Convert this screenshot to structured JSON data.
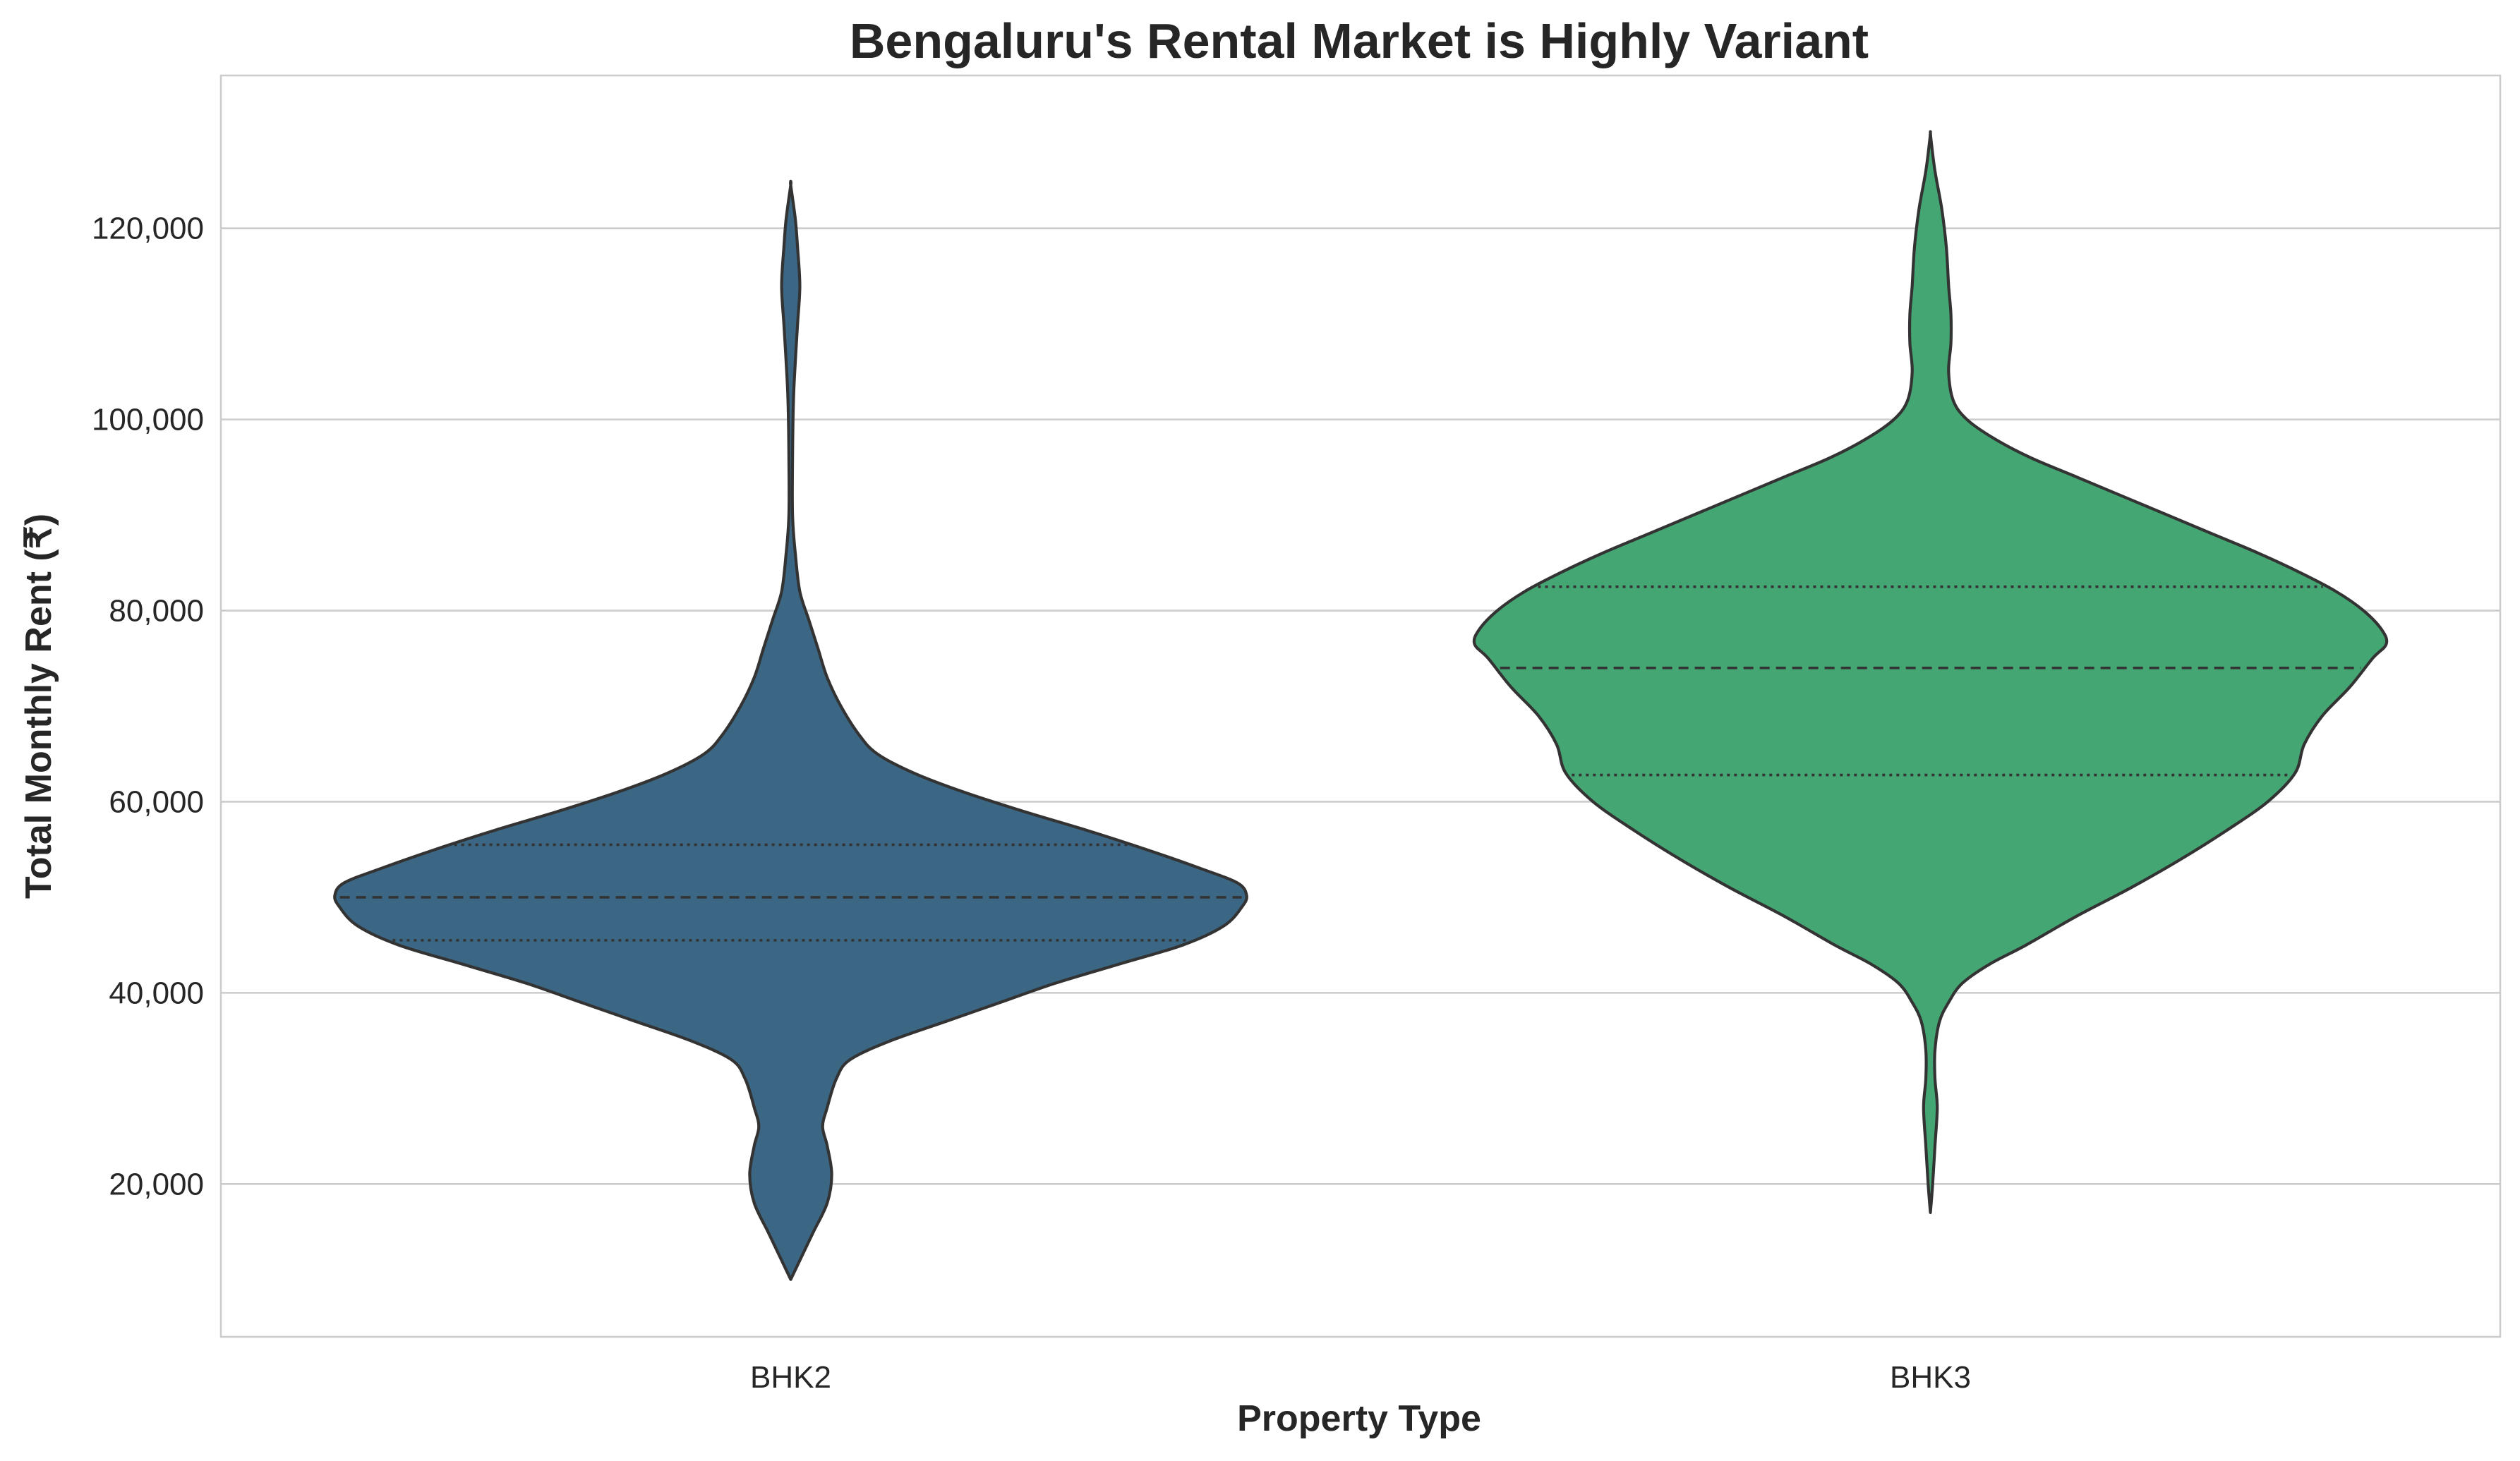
{
  "chart_data": {
    "type": "violin",
    "title": "Bengaluru's Rental Market is Highly Variant",
    "xlabel": "Property Type",
    "ylabel": "Total Monthly Rent (₹)",
    "categories": [
      "BHK2",
      "BHK3"
    ],
    "ylim": [
      4000,
      136000
    ],
    "yticks": [
      20000,
      40000,
      60000,
      80000,
      100000,
      120000
    ],
    "ytick_labels": [
      "20,000",
      "40,000",
      "60,000",
      "80,000",
      "100,000",
      "120,000"
    ],
    "grid": "horizontal",
    "colors": {
      "BHK2": "#3b6684",
      "BHK3": "#44a673"
    },
    "series": [
      {
        "category": "BHK2",
        "min": 10000,
        "q1": 45500,
        "median": 50000,
        "q3": 55500,
        "max": 124500,
        "density": [
          [
            10000,
            0.0
          ],
          [
            12000,
            0.02
          ],
          [
            15000,
            0.05
          ],
          [
            18000,
            0.08
          ],
          [
            21000,
            0.09
          ],
          [
            24000,
            0.08
          ],
          [
            26000,
            0.07
          ],
          [
            28000,
            0.08
          ],
          [
            31000,
            0.1
          ],
          [
            33000,
            0.13
          ],
          [
            35000,
            0.22
          ],
          [
            37000,
            0.34
          ],
          [
            39000,
            0.46
          ],
          [
            41000,
            0.58
          ],
          [
            43000,
            0.72
          ],
          [
            45000,
            0.86
          ],
          [
            47000,
            0.95
          ],
          [
            49000,
            0.99
          ],
          [
            50200,
            1.0
          ],
          [
            51500,
            0.98
          ],
          [
            53000,
            0.9
          ],
          [
            55000,
            0.78
          ],
          [
            57000,
            0.65
          ],
          [
            59000,
            0.51
          ],
          [
            61000,
            0.38
          ],
          [
            63000,
            0.27
          ],
          [
            65000,
            0.19
          ],
          [
            67000,
            0.15
          ],
          [
            70000,
            0.11
          ],
          [
            73000,
            0.08
          ],
          [
            76000,
            0.06
          ],
          [
            79000,
            0.04
          ],
          [
            82000,
            0.02
          ],
          [
            86000,
            0.01
          ],
          [
            90000,
            0.004
          ],
          [
            96000,
            0.004
          ],
          [
            102000,
            0.006
          ],
          [
            106000,
            0.01
          ],
          [
            110000,
            0.015
          ],
          [
            114000,
            0.02
          ],
          [
            118000,
            0.015
          ],
          [
            121000,
            0.01
          ],
          [
            124500,
            0.0
          ]
        ]
      },
      {
        "category": "BHK3",
        "min": 17000,
        "q1": 62800,
        "median": 74000,
        "q3": 82500,
        "max": 130000,
        "density": [
          [
            17000,
            0.0
          ],
          [
            20000,
            0.005
          ],
          [
            24000,
            0.01
          ],
          [
            28000,
            0.015
          ],
          [
            31000,
            0.01
          ],
          [
            34000,
            0.01
          ],
          [
            37000,
            0.02
          ],
          [
            39000,
            0.04
          ],
          [
            41000,
            0.07
          ],
          [
            43000,
            0.13
          ],
          [
            45000,
            0.21
          ],
          [
            48000,
            0.32
          ],
          [
            51000,
            0.44
          ],
          [
            54000,
            0.55
          ],
          [
            57000,
            0.65
          ],
          [
            60000,
            0.74
          ],
          [
            63000,
            0.8
          ],
          [
            66000,
            0.82
          ],
          [
            69000,
            0.86
          ],
          [
            72000,
            0.92
          ],
          [
            75000,
            0.97
          ],
          [
            76500,
            1.0
          ],
          [
            78000,
            0.99
          ],
          [
            80000,
            0.95
          ],
          [
            82000,
            0.89
          ],
          [
            84000,
            0.81
          ],
          [
            86000,
            0.72
          ],
          [
            88000,
            0.62
          ],
          [
            90000,
            0.52
          ],
          [
            92000,
            0.42
          ],
          [
            94000,
            0.32
          ],
          [
            96000,
            0.22
          ],
          [
            98000,
            0.14
          ],
          [
            100000,
            0.08
          ],
          [
            102000,
            0.05
          ],
          [
            105000,
            0.04
          ],
          [
            108000,
            0.045
          ],
          [
            111000,
            0.045
          ],
          [
            114000,
            0.04
          ],
          [
            118000,
            0.035
          ],
          [
            122000,
            0.025
          ],
          [
            126000,
            0.01
          ],
          [
            129000,
            0.002
          ],
          [
            130000,
            0.0
          ]
        ]
      }
    ]
  }
}
